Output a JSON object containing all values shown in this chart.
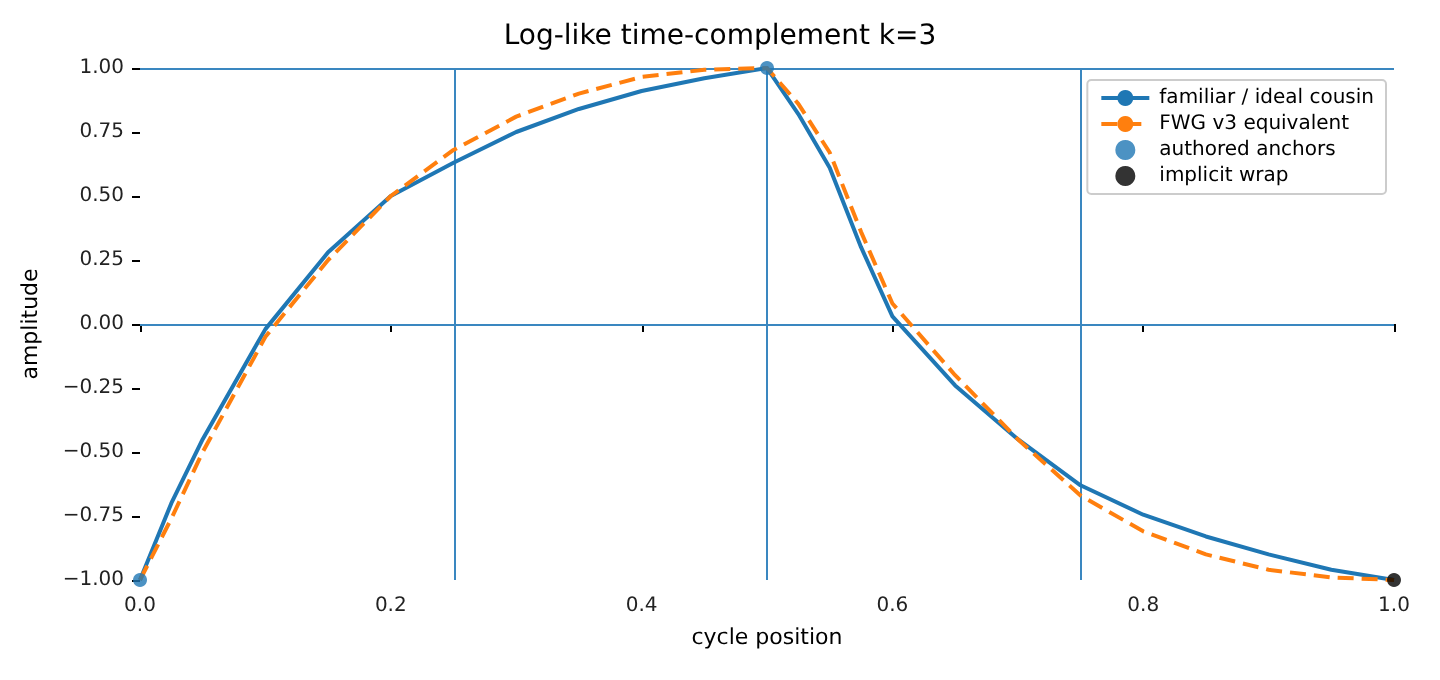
{
  "chart_data": {
    "type": "line",
    "title": "Log-like time-complement k=3",
    "xlabel": "cycle position",
    "ylabel": "amplitude",
    "xlim": [
      0,
      1
    ],
    "ylim": [
      -1,
      1
    ],
    "xticks": [
      {
        "value": 0,
        "label": "0.0"
      },
      {
        "value": 0.2,
        "label": "0.2"
      },
      {
        "value": 0.4,
        "label": "0.4"
      },
      {
        "value": 0.6,
        "label": "0.6"
      },
      {
        "value": 0.8,
        "label": "0.8"
      },
      {
        "value": 1,
        "label": "1.0"
      }
    ],
    "yticks": [
      {
        "value": -1,
        "label": "−1.00"
      },
      {
        "value": -0.75,
        "label": "−0.75"
      },
      {
        "value": -0.5,
        "label": "−0.50"
      },
      {
        "value": -0.25,
        "label": "−0.25"
      },
      {
        "value": 0,
        "label": "0.00"
      },
      {
        "value": 0.25,
        "label": "0.25"
      },
      {
        "value": 0.5,
        "label": "0.50"
      },
      {
        "value": 0.75,
        "label": "0.75"
      },
      {
        "value": 1,
        "label": "1.00"
      }
    ],
    "grid": false,
    "legend": "top right",
    "marker": "none",
    "x": [
      0,
      0.025,
      0.05,
      0.1,
      0.15,
      0.2,
      0.25,
      0.3,
      0.35,
      0.4,
      0.45,
      0.5,
      0.525,
      0.55,
      0.575,
      0.6,
      0.65,
      0.7,
      0.75,
      0.8,
      0.85,
      0.9,
      0.95,
      1
    ],
    "series": [
      {
        "name": "familiar / ideal cousin",
        "color": "#1f77b4",
        "line_style": "solid",
        "values": [
          -1,
          -0.7,
          -0.45,
          -0.02,
          0.28,
          0.5,
          0.63,
          0.75,
          0.84,
          0.91,
          0.96,
          1,
          0.82,
          0.61,
          0.3,
          0.03,
          -0.24,
          -0.45,
          -0.63,
          -0.745,
          -0.83,
          -0.9,
          -0.96,
          -1
        ]
      },
      {
        "name": "FWG v3 equivalent",
        "color": "#ff7f0e",
        "line_style": "dashed",
        "values": [
          -1,
          -0.76,
          -0.5,
          -0.05,
          0.25,
          0.5,
          0.68,
          0.81,
          0.9,
          0.965,
          0.993,
          1,
          0.86,
          0.67,
          0.36,
          0.08,
          -0.2,
          -0.45,
          -0.67,
          -0.81,
          -0.9,
          -0.96,
          -0.99,
          -1
        ]
      },
      {
        "name": "authored anchors",
        "type": "scatter",
        "color": "#1f77b4",
        "marker": "circle",
        "x": [
          0,
          0.5
        ],
        "values": [
          -1,
          1
        ]
      },
      {
        "name": "implicit wrap",
        "type": "scatter",
        "color": "#000000",
        "marker": "circle",
        "x": [
          1
        ],
        "values": [
          -1
        ]
      }
    ],
    "ref_lines": [
      {
        "axis": "x",
        "value": 0.25,
        "color": "#3a87c0"
      },
      {
        "axis": "x",
        "value": 0.5,
        "color": "#3a87c0"
      },
      {
        "axis": "x",
        "value": 0.75,
        "color": "#3a87c0"
      },
      {
        "axis": "y",
        "value": 0,
        "color": "#3a87c0"
      },
      {
        "axis": "y",
        "value": 1,
        "color": "#3a87c0"
      }
    ]
  }
}
